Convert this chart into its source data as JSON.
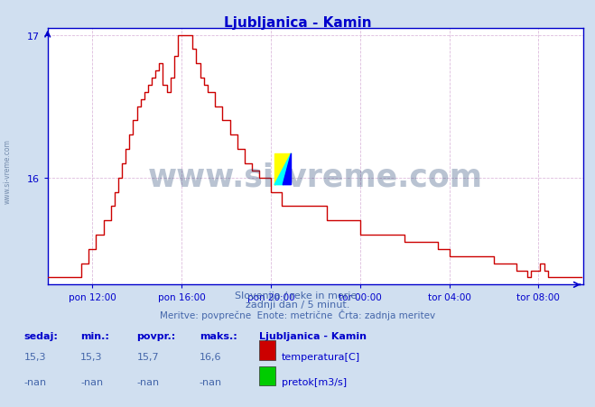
{
  "title": "Ljubljanica - Kamin",
  "bg_color": "#d0dff0",
  "plot_bg_color": "#ffffff",
  "line_color": "#cc0000",
  "grid_color": "#ddbbdd",
  "axis_color": "#0000cc",
  "tick_color": "#0000cc",
  "text_color": "#4466aa",
  "title_color": "#0000cc",
  "subtitle1": "Slovenija / reke in morje.",
  "subtitle2": "zadnji dan / 5 minut.",
  "subtitle3": "Meritve: povprečne  Enote: metrične  Črta: zadnja meritev",
  "legend_title": "Ljubljanica - Kamin",
  "legend_item1": "temperatura[C]",
  "legend_item2": "pretok[m3/s]",
  "legend_color1": "#cc0000",
  "legend_color2": "#00cc00",
  "stats_headers": [
    "sedaj:",
    "min.:",
    "povpr.:",
    "maks.:"
  ],
  "stats_row1": [
    "15,3",
    "15,3",
    "15,7",
    "16,6"
  ],
  "stats_row2": [
    "-nan",
    "-nan",
    "-nan",
    "-nan"
  ],
  "ylim_min": 15.25,
  "ylim_max": 17.05,
  "yticks": [
    16,
    17
  ],
  "xlim_start": 0,
  "xlim_end": 288,
  "xtick_labels": [
    "pon 12:00",
    "pon 16:00",
    "pon 20:00",
    "tor 00:00",
    "tor 04:00",
    "tor 08:00"
  ],
  "xtick_positions": [
    24,
    72,
    120,
    168,
    216,
    264
  ],
  "watermark": "www.si-vreme.com",
  "watermark_color": "#1a3a6a",
  "watermark_alpha": 0.3,
  "watermark_side": "www.si-vreme.com"
}
